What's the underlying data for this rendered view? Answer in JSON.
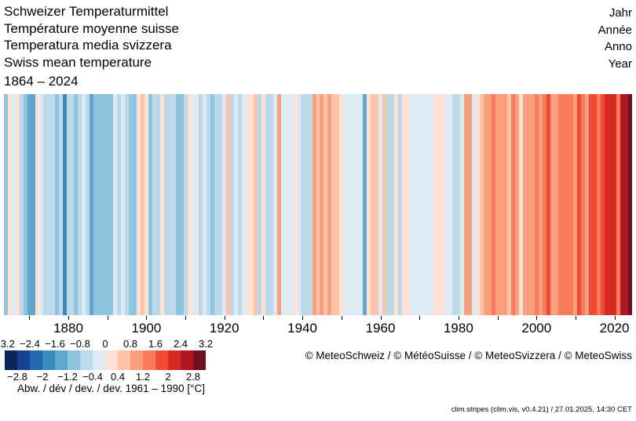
{
  "header": {
    "titles": [
      "Schweizer Temperaturmittel",
      "Température moyenne suisse",
      "Temperatura media svizzera",
      "Swiss mean temperature"
    ],
    "period": "1864 – 2024",
    "unit_labels": [
      "Jahr",
      "Année",
      "Anno",
      "Year"
    ]
  },
  "chart_data": {
    "type": "heatmap",
    "subtype": "warming-stripes",
    "title": "Schweizer Temperaturmittel / Swiss mean temperature",
    "x_start_year": 1864,
    "x_end_year": 2024,
    "baseline_period": "1961 – 1990",
    "unit": "°C",
    "anomalies_degC": [
      -1.2,
      0.2,
      -0.2,
      0.2,
      -0.6,
      -1.0,
      -1.3,
      -1.4,
      0.2,
      -0.2,
      -0.6,
      -0.7,
      -0.6,
      -0.9,
      -0.7,
      -1.8,
      -0.7,
      -0.5,
      -0.9,
      -0.6,
      -0.3,
      -0.6,
      -1.3,
      -1.2,
      -1.2,
      -1.1,
      -1.2,
      -1.1,
      -0.2,
      -0.5,
      -0.4,
      -0.7,
      -0.9,
      -1.0,
      0.3,
      0.5,
      0.3,
      -0.9,
      -0.5,
      -0.8,
      0.3,
      -0.6,
      -0.5,
      -0.8,
      -1.0,
      -0.9,
      -0.5,
      0.3,
      -0.3,
      -0.2,
      -0.5,
      -0.3,
      -0.7,
      -1.0,
      -0.8,
      -0.6,
      -0.1,
      0.7,
      -0.8,
      -0.2,
      -0.5,
      -0.2,
      0.3,
      0.2,
      0.5,
      -0.5,
      0.3,
      -0.5,
      -0.7,
      -0.3,
      0.8,
      -0.2,
      -0.1,
      -0.2,
      0.1,
      -0.4,
      -0.5,
      -0.8,
      -0.8,
      0.8,
      0.4,
      0.9,
      0.6,
      1.0,
      0.5,
      0.5,
      0.1,
      -0.2,
      -0.4,
      -0.3,
      -0.4,
      -0.3,
      -1.3,
      0.2,
      0.5,
      0.7,
      -0.1,
      0.7,
      -0.7,
      -0.5,
      0.3,
      -0.7,
      0.1,
      0.0,
      -0.3,
      -0.3,
      -0.4,
      -0.3,
      -0.3,
      -0.1,
      0.2,
      0.3,
      0.2,
      -0.4,
      -0.1,
      -0.5,
      -0.5,
      -0.2,
      0.9,
      0.8,
      -0.4,
      0.2,
      0.7,
      0.9,
      1.1,
      1.2,
      1.1,
      0.8,
      1.0,
      0.5,
      1.5,
      0.9,
      0.3,
      1.0,
      1.0,
      0.9,
      1.2,
      0.9,
      1.3,
      1.6,
      0.9,
      0.9,
      1.3,
      1.5,
      1.2,
      1.3,
      0.8,
      1.8,
      1.4,
      1.0,
      1.9,
      1.9,
      1.4,
      1.8,
      2.1,
      2.0,
      2.1,
      1.5,
      2.5,
      2.6,
      2.9
    ],
    "axis_tick_years": [
      1870,
      1880,
      1890,
      1900,
      1910,
      1920,
      1930,
      1940,
      1950,
      1960,
      1970,
      1980,
      1990,
      2000,
      2010,
      2020
    ],
    "axis_label_years": [
      "1880",
      "1900",
      "1920",
      "1940",
      "1960",
      "1980",
      "2000",
      "2020"
    ],
    "color_bins": {
      "min": -3.2,
      "max": 3.2,
      "step": 0.4,
      "colors": [
        "#0a2858",
        "#15418f",
        "#2367af",
        "#3c8abe",
        "#60a6cd",
        "#8ec4dd",
        "#bcd9ea",
        "#dde9f3",
        "#fde2d3",
        "#fcc3a9",
        "#fa9f7c",
        "#f87c5c",
        "#f04b35",
        "#d62b25",
        "#ad1722",
        "#721120"
      ]
    }
  },
  "legend": {
    "top_labels": [
      "−3.2",
      "−2.4",
      "−1.6",
      "−0.8",
      "0",
      "0.8",
      "1.6",
      "2.4",
      "3.2"
    ],
    "bottom_labels": [
      "−2.8",
      "−2",
      "−1.2",
      "−0.4",
      "0.4",
      "1.2",
      "2",
      "2.8"
    ],
    "caption": "Abw. / dév / dev. / dev. 1961 – 1990 [°C]"
  },
  "footer": {
    "copyright": "© MeteoSchweiz / © MétéoSuisse / © MeteoSvizzera / © MeteoSwiss",
    "version_line": "clim.stripes (clim.vis, v0.4.21) / 27.01.2025, 14:30 CET"
  }
}
